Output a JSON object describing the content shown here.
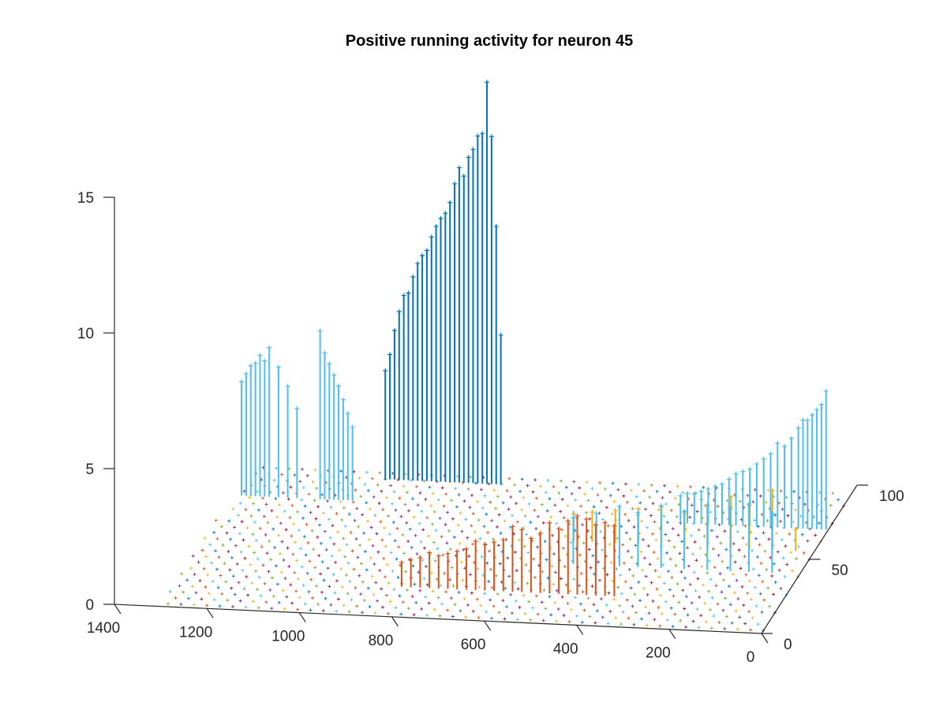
{
  "chart_data": {
    "type": "stem3",
    "title": "Positive running activity for neuron 45",
    "xlabel": "",
    "ylabel": "",
    "zlabel": "",
    "x_range": [
      0,
      1400
    ],
    "y_range": [
      0,
      100
    ],
    "z_range": [
      0,
      15
    ],
    "x_ticks": [
      "0",
      "200",
      "400",
      "600",
      "800",
      "1000",
      "1200",
      "1400"
    ],
    "y_ticks": [
      "0",
      "50",
      "100"
    ],
    "z_ticks": [
      "0",
      "5",
      "10",
      "15"
    ],
    "grid": false,
    "legend": "none",
    "colors": [
      "#0072BD",
      "#D95319",
      "#EDB120",
      "#7E2F8E",
      "#77AC30",
      "#4DBEEE",
      "#A2142F"
    ],
    "stem_series": [
      {
        "y": 90,
        "color": "#0072BD",
        "points": [
          {
            "x": 1000,
            "z": 4.0
          },
          {
            "x": 990,
            "z": 4.6
          },
          {
            "x": 980,
            "z": 5.5
          },
          {
            "x": 970,
            "z": 6.2
          },
          {
            "x": 960,
            "z": 6.8
          },
          {
            "x": 950,
            "z": 6.9
          },
          {
            "x": 940,
            "z": 7.5
          },
          {
            "x": 930,
            "z": 8.0
          },
          {
            "x": 920,
            "z": 8.3
          },
          {
            "x": 910,
            "z": 8.5
          },
          {
            "x": 900,
            "z": 9.0
          },
          {
            "x": 890,
            "z": 9.4
          },
          {
            "x": 880,
            "z": 9.7
          },
          {
            "x": 870,
            "z": 9.9
          },
          {
            "x": 860,
            "z": 10.3
          },
          {
            "x": 850,
            "z": 11.0
          },
          {
            "x": 840,
            "z": 11.6
          },
          {
            "x": 830,
            "z": 11.3
          },
          {
            "x": 820,
            "z": 12.0
          },
          {
            "x": 810,
            "z": 12.3
          },
          {
            "x": 800,
            "z": 12.8
          },
          {
            "x": 790,
            "z": 12.9
          },
          {
            "x": 780,
            "z": 14.8
          },
          {
            "x": 770,
            "z": 12.8
          },
          {
            "x": 760,
            "z": 9.5
          },
          {
            "x": 750,
            "z": 5.5
          }
        ]
      },
      {
        "y": 75,
        "color": "#4DBEEE",
        "points": [
          {
            "x": 1280,
            "z": 4.2
          },
          {
            "x": 1270,
            "z": 4.5
          },
          {
            "x": 1260,
            "z": 4.8
          },
          {
            "x": 1250,
            "z": 4.9
          },
          {
            "x": 1240,
            "z": 5.2
          },
          {
            "x": 1230,
            "z": 5.0
          },
          {
            "x": 1220,
            "z": 5.5
          },
          {
            "x": 1200,
            "z": 4.8
          },
          {
            "x": 1180,
            "z": 4.1
          },
          {
            "x": 1160,
            "z": 3.3
          },
          {
            "x": 1110,
            "z": 6.2
          },
          {
            "x": 1100,
            "z": 5.4
          },
          {
            "x": 1090,
            "z": 5.0
          },
          {
            "x": 1080,
            "z": 4.6
          },
          {
            "x": 1070,
            "z": 4.2
          },
          {
            "x": 1060,
            "z": 3.7
          },
          {
            "x": 1050,
            "z": 3.2
          },
          {
            "x": 1040,
            "z": 2.7
          }
        ]
      },
      {
        "y": 70,
        "color": "#4DBEEE",
        "points": [
          {
            "x": 5,
            "z": 5.1
          },
          {
            "x": 15,
            "z": 4.6
          },
          {
            "x": 25,
            "z": 4.4
          },
          {
            "x": 35,
            "z": 4.2
          },
          {
            "x": 45,
            "z": 4.0
          },
          {
            "x": 55,
            "z": 4.0
          },
          {
            "x": 65,
            "z": 3.7
          },
          {
            "x": 80,
            "z": 3.3
          },
          {
            "x": 95,
            "z": 3.0
          },
          {
            "x": 110,
            "z": 3.1
          },
          {
            "x": 125,
            "z": 2.7
          },
          {
            "x": 140,
            "z": 2.5
          },
          {
            "x": 155,
            "z": 2.3
          },
          {
            "x": 170,
            "z": 2.1
          },
          {
            "x": 185,
            "z": 2.0
          },
          {
            "x": 200,
            "z": 1.9
          },
          {
            "x": 215,
            "z": 1.7
          },
          {
            "x": 230,
            "z": 1.5
          },
          {
            "x": 245,
            "z": 1.4
          },
          {
            "x": 260,
            "z": 1.3
          },
          {
            "x": 275,
            "z": 1.2
          },
          {
            "x": 290,
            "z": 1.1
          },
          {
            "x": 305,
            "z": 1.1
          },
          {
            "x": 320,
            "z": 1.0
          }
        ]
      },
      {
        "y": 55,
        "color": "#EDB120",
        "points": [
          {
            "x": 40,
            "z": 0.8
          },
          {
            "x": 90,
            "z": 2.2
          },
          {
            "x": 140,
            "z": 1.6
          },
          {
            "x": 180,
            "z": 1.9
          },
          {
            "x": 230,
            "z": 1.5
          },
          {
            "x": 280,
            "z": 1.2
          },
          {
            "x": 330,
            "z": 1.4
          },
          {
            "x": 380,
            "z": 1.3
          },
          {
            "x": 430,
            "z": 1.2
          },
          {
            "x": 480,
            "z": 1.1
          },
          {
            "x": 520,
            "z": 1.0
          }
        ]
      },
      {
        "y": 40,
        "color": "#4DBEEE",
        "points": [
          {
            "x": 60,
            "z": 2.2
          },
          {
            "x": 110,
            "z": 2.5
          },
          {
            "x": 150,
            "z": 2.3
          },
          {
            "x": 200,
            "z": 2.4
          },
          {
            "x": 250,
            "z": 2.1
          },
          {
            "x": 300,
            "z": 2.3
          },
          {
            "x": 350,
            "z": 2.0
          },
          {
            "x": 390,
            "z": 2.2
          },
          {
            "x": 440,
            "z": 1.9
          },
          {
            "x": 490,
            "z": 1.7
          }
        ]
      },
      {
        "y": 20,
        "color": "#D95319",
        "points": [
          {
            "x": 360,
            "z": 2.6
          },
          {
            "x": 380,
            "z": 2.7
          },
          {
            "x": 400,
            "z": 2.6
          },
          {
            "x": 420,
            "z": 2.8
          },
          {
            "x": 440,
            "z": 2.9
          },
          {
            "x": 460,
            "z": 2.7
          },
          {
            "x": 480,
            "z": 2.4
          },
          {
            "x": 500,
            "z": 2.6
          },
          {
            "x": 520,
            "z": 2.2
          },
          {
            "x": 540,
            "z": 2.0
          },
          {
            "x": 560,
            "z": 2.3
          },
          {
            "x": 580,
            "z": 2.4
          },
          {
            "x": 600,
            "z": 1.9
          },
          {
            "x": 620,
            "z": 1.8
          },
          {
            "x": 640,
            "z": 1.7
          },
          {
            "x": 660,
            "z": 1.8
          },
          {
            "x": 680,
            "z": 1.5
          },
          {
            "x": 700,
            "z": 1.4
          },
          {
            "x": 720,
            "z": 1.3
          },
          {
            "x": 740,
            "z": 1.2
          },
          {
            "x": 760,
            "z": 1.3
          },
          {
            "x": 780,
            "z": 1.1
          },
          {
            "x": 800,
            "z": 1.0
          },
          {
            "x": 820,
            "z": 0.9
          }
        ]
      }
    ],
    "floor_marker_rows_y": [
      2,
      6,
      10,
      14,
      18,
      22,
      26,
      30,
      34,
      38,
      42,
      46,
      50,
      54,
      58,
      62,
      66,
      70,
      74,
      78,
      82,
      86,
      90,
      94
    ]
  }
}
